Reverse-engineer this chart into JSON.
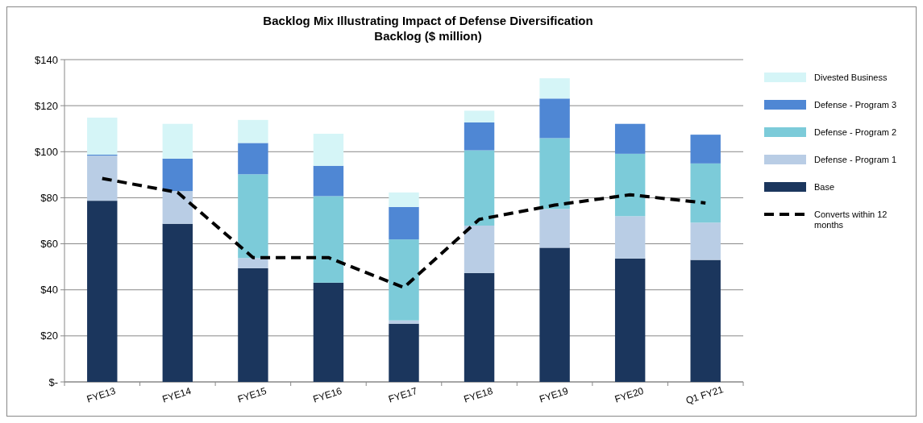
{
  "chart_data": {
    "type": "bar",
    "stacked": true,
    "title": "Backlog Mix Illustrating Impact of Defense Diversification",
    "subtitle": "Backlog ($ million)",
    "categories": [
      "FYE13",
      "FYE14",
      "FYE15",
      "FYE16",
      "FYE17",
      "FYE18",
      "FYE19",
      "FYE20",
      "Q1 FY21"
    ],
    "series": [
      {
        "name": "Base",
        "color": "#1b365d",
        "values": [
          78.7,
          68.7,
          49.4,
          43.1,
          25.3,
          47.3,
          58.3,
          53.6,
          53.0
        ]
      },
      {
        "name": "Defense - Program 1",
        "color": "#b9cde5",
        "values": [
          19.6,
          14.2,
          4.4,
          0,
          1.4,
          20.6,
          16.8,
          18.4,
          16.2
        ]
      },
      {
        "name": "Defense - Program 2",
        "color": "#7ccbd9",
        "values": [
          0,
          0,
          36.4,
          37.6,
          35.2,
          32.7,
          30.8,
          27.1,
          25.7
        ]
      },
      {
        "name": "Defense - Program 3",
        "color": "#4f87d4",
        "values": [
          0.4,
          14.1,
          13.6,
          13.2,
          14.1,
          12.1,
          17.2,
          13.0,
          12.5
        ]
      },
      {
        "name": "Divested Business",
        "color": "#d5f5f7",
        "values": [
          16.1,
          15.1,
          10.0,
          13.9,
          6.3,
          5.1,
          8.8,
          0,
          0
        ]
      },
      {
        "name": "Converts within 12 months",
        "type": "line",
        "color": "#000000",
        "line_style": "dashed",
        "marker": "none",
        "values": [
          88.4,
          82.3,
          54.0,
          54.0,
          41.0,
          70.6,
          76.8,
          81.3,
          77.7
        ]
      }
    ],
    "ylim": [
      0,
      140
    ],
    "yticks": [
      {
        "value": 0,
        "label": "$-"
      },
      {
        "value": 20,
        "label": "$20"
      },
      {
        "value": 40,
        "label": "$40"
      },
      {
        "value": 60,
        "label": "$60"
      },
      {
        "value": 80,
        "label": "$80"
      },
      {
        "value": 100,
        "label": "$100"
      },
      {
        "value": 120,
        "label": "$120"
      },
      {
        "value": 140,
        "label": "$140"
      }
    ],
    "grid": "y",
    "legend": "right"
  }
}
